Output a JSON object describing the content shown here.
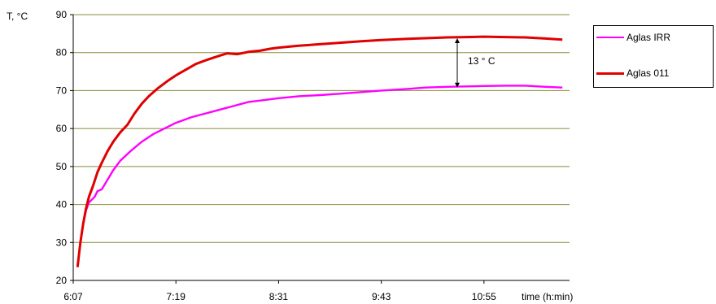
{
  "chart_data": {
    "type": "line",
    "xlabel": "time (h:min)",
    "ylabel": "T, °C",
    "ylim": [
      20,
      90
    ],
    "yticks": [
      20,
      30,
      40,
      50,
      60,
      70,
      80,
      90
    ],
    "xlim": [
      "6:07",
      "11:55"
    ],
    "xtick_labels": [
      "6:07",
      "7:19",
      "8:31",
      "9:43",
      "10:55"
    ],
    "grid": "horizontal",
    "legend_placement": "right",
    "annotation": "13 ° C",
    "series": [
      {
        "name": "Aglas IRR",
        "color": "#ff00ff",
        "points": [
          [
            "6:10",
            23.5
          ],
          [
            "6:12",
            30
          ],
          [
            "6:14",
            35
          ],
          [
            "6:16",
            38.5
          ],
          [
            "6:18",
            40.5
          ],
          [
            "6:22",
            42
          ],
          [
            "6:24",
            43.5
          ],
          [
            "6:27",
            44
          ],
          [
            "6:31",
            46.5
          ],
          [
            "6:35",
            49
          ],
          [
            "6:40",
            51.5
          ],
          [
            "6:47",
            54
          ],
          [
            "6:55",
            56.5
          ],
          [
            "7:03",
            58.5
          ],
          [
            "7:11",
            60
          ],
          [
            "7:19",
            61.5
          ],
          [
            "7:30",
            63
          ],
          [
            "7:40",
            64
          ],
          [
            "7:50",
            65
          ],
          [
            "8:00",
            66
          ],
          [
            "8:10",
            67
          ],
          [
            "8:21",
            67.5
          ],
          [
            "8:31",
            68
          ],
          [
            "8:45",
            68.5
          ],
          [
            "9:00",
            68.8
          ],
          [
            "9:15",
            69.2
          ],
          [
            "9:29",
            69.6
          ],
          [
            "9:43",
            70
          ],
          [
            "10:00",
            70.4
          ],
          [
            "10:14",
            70.8
          ],
          [
            "10:29",
            71
          ],
          [
            "10:43",
            71.1
          ],
          [
            "10:55",
            71.2
          ],
          [
            "11:10",
            71.3
          ],
          [
            "11:24",
            71.3
          ],
          [
            "11:38",
            71
          ],
          [
            "11:50",
            70.8
          ]
        ]
      },
      {
        "name": "Aglas 011",
        "color": "#e00000",
        "points": [
          [
            "6:10",
            23.5
          ],
          [
            "6:12",
            30
          ],
          [
            "6:14",
            35
          ],
          [
            "6:16",
            39
          ],
          [
            "6:18",
            42
          ],
          [
            "6:21",
            45
          ],
          [
            "6:24",
            48.5
          ],
          [
            "6:27",
            51
          ],
          [
            "6:31",
            54
          ],
          [
            "6:35",
            56.5
          ],
          [
            "6:40",
            59
          ],
          [
            "6:45",
            61
          ],
          [
            "6:50",
            64
          ],
          [
            "6:55",
            66.5
          ],
          [
            "7:00",
            68.5
          ],
          [
            "7:06",
            70.5
          ],
          [
            "7:13",
            72.5
          ],
          [
            "7:19",
            74
          ],
          [
            "7:26",
            75.5
          ],
          [
            "7:33",
            77
          ],
          [
            "7:40",
            78
          ],
          [
            "7:48",
            79
          ],
          [
            "7:55",
            79.8
          ],
          [
            "8:02",
            79.6
          ],
          [
            "8:10",
            80.2
          ],
          [
            "8:18",
            80.5
          ],
          [
            "8:25",
            81
          ],
          [
            "8:31",
            81.3
          ],
          [
            "8:45",
            81.8
          ],
          [
            "9:00",
            82.2
          ],
          [
            "9:14",
            82.6
          ],
          [
            "9:29",
            83
          ],
          [
            "9:43",
            83.3
          ],
          [
            "10:00",
            83.6
          ],
          [
            "10:14",
            83.8
          ],
          [
            "10:29",
            84
          ],
          [
            "10:43",
            84.1
          ],
          [
            "10:55",
            84.2
          ],
          [
            "11:10",
            84.1
          ],
          [
            "11:24",
            84
          ],
          [
            "11:38",
            83.7
          ],
          [
            "11:50",
            83.4
          ]
        ]
      }
    ]
  }
}
